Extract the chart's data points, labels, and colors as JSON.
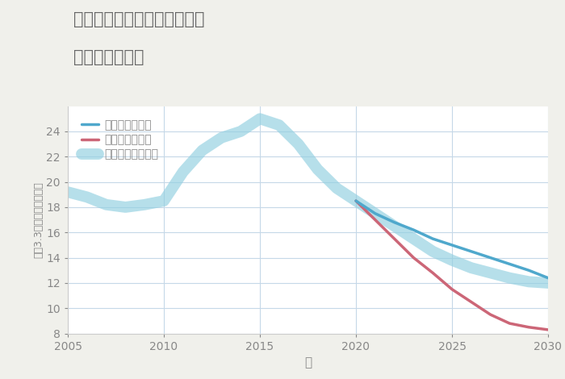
{
  "title_line1": "愛知県江南市布袋下山町北の",
  "title_line2": "土地の価格推移",
  "xlabel": "年",
  "ylabel": "平（3.3㎡）単価（万円）",
  "background_color": "#f0f0eb",
  "plot_background_color": "#ffffff",
  "grid_color": "#c5d8e8",
  "ylim": [
    8,
    26
  ],
  "xlim": [
    2005,
    2030
  ],
  "yticks": [
    8,
    10,
    12,
    14,
    16,
    18,
    20,
    22,
    24
  ],
  "xticks": [
    2005,
    2010,
    2015,
    2020,
    2025,
    2030
  ],
  "normal_scenario": {
    "label": "ノーマルシナリオ",
    "color": "#90cfe0",
    "linewidth": 10,
    "alpha": 0.65,
    "years": [
      2005,
      2006,
      2007,
      2008,
      2009,
      2010,
      2011,
      2012,
      2013,
      2014,
      2015,
      2016,
      2017,
      2018,
      2019,
      2020,
      2021,
      2022,
      2023,
      2024,
      2025,
      2026,
      2027,
      2028,
      2029,
      2030
    ],
    "values": [
      19.2,
      18.8,
      18.2,
      18.0,
      18.2,
      18.5,
      20.8,
      22.5,
      23.5,
      24.0,
      25.0,
      24.5,
      23.0,
      21.0,
      19.5,
      18.5,
      17.5,
      16.5,
      15.5,
      14.5,
      13.8,
      13.2,
      12.8,
      12.4,
      12.1,
      12.0
    ]
  },
  "good_scenario": {
    "label": "グッドシナリオ",
    "color": "#4fa8cc",
    "linewidth": 2.5,
    "alpha": 1.0,
    "years": [
      2020,
      2021,
      2022,
      2023,
      2024,
      2025,
      2026,
      2027,
      2028,
      2029,
      2030
    ],
    "values": [
      18.5,
      17.5,
      16.8,
      16.2,
      15.5,
      15.0,
      14.5,
      14.0,
      13.5,
      13.0,
      12.4
    ]
  },
  "bad_scenario": {
    "label": "バッドシナリオ",
    "color": "#cc6677",
    "linewidth": 2.5,
    "alpha": 1.0,
    "years": [
      2020,
      2021,
      2022,
      2023,
      2024,
      2025,
      2026,
      2027,
      2028,
      2029,
      2030
    ],
    "values": [
      18.5,
      17.0,
      15.5,
      14.0,
      12.8,
      11.5,
      10.5,
      9.5,
      8.8,
      8.5,
      8.3
    ]
  },
  "title_color": "#666666",
  "axis_color": "#888888",
  "tick_color": "#888888",
  "tick_fontsize": 10,
  "axis_label_fontsize": 11,
  "legend_fontsize": 10
}
